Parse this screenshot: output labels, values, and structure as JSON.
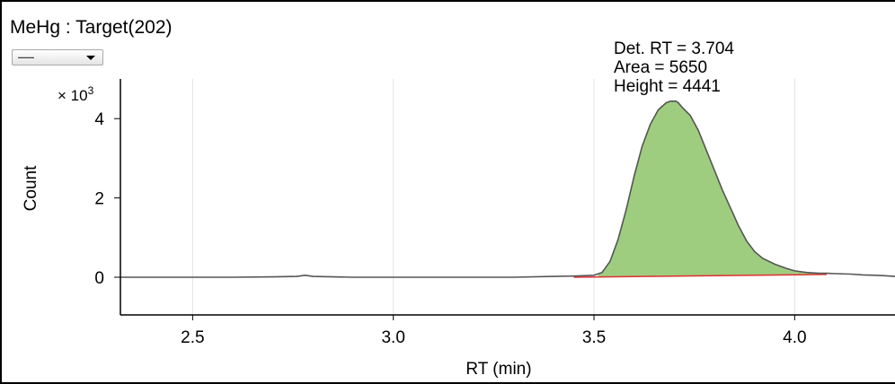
{
  "chart_data": {
    "type": "line",
    "title": "MeHg : Target(202)",
    "xlabel": "RT (min)",
    "ylabel": "Count",
    "y_multiplier_base": "× 10",
    "y_multiplier_exp": "3",
    "xlim": [
      2.32,
      4.25
    ],
    "ylim": [
      -0.95,
      5.0
    ],
    "x_ticks": [
      2.5,
      3.0,
      3.5,
      4.0
    ],
    "x_tick_labels": [
      "2.5",
      "3.0",
      "3.5",
      "4.0"
    ],
    "y_ticks": [
      0,
      2,
      4
    ],
    "y_tick_labels": [
      "0",
      "2",
      "4"
    ],
    "grid": {
      "vertical": true,
      "horizontal": false
    },
    "colors": {
      "trace": "#555555",
      "peak_fill": "#9fcd7f",
      "baseline": "#e03030",
      "grid": "#e3e3e3"
    },
    "series": [
      {
        "x": [
          2.32,
          2.4,
          2.5,
          2.6,
          2.7,
          2.76,
          2.78,
          2.8,
          2.9,
          3.0,
          3.1,
          3.2,
          3.3,
          3.4,
          3.45,
          3.48,
          3.5,
          3.52,
          3.54,
          3.56,
          3.58,
          3.6,
          3.62,
          3.64,
          3.66,
          3.68,
          3.69,
          3.704,
          3.71,
          3.72,
          3.74,
          3.76,
          3.78,
          3.8,
          3.82,
          3.84,
          3.86,
          3.88,
          3.9,
          3.92,
          3.95,
          3.98,
          4.0,
          4.03,
          4.06,
          4.08,
          4.1,
          4.14,
          4.17,
          4.2,
          4.22,
          4.25
        ],
        "y": [
          0.0,
          0.0,
          0.0,
          0.0,
          0.01,
          0.02,
          0.05,
          0.02,
          0.0,
          0.0,
          0.0,
          0.0,
          0.0,
          0.02,
          0.03,
          0.04,
          0.05,
          0.12,
          0.4,
          0.95,
          1.7,
          2.55,
          3.3,
          3.85,
          4.22,
          4.4,
          4.44,
          4.441,
          4.4,
          4.28,
          4.08,
          3.7,
          3.2,
          2.7,
          2.2,
          1.75,
          1.3,
          0.92,
          0.65,
          0.48,
          0.33,
          0.22,
          0.16,
          0.12,
          0.1,
          0.1,
          0.09,
          0.08,
          0.06,
          0.05,
          0.04,
          0.02
        ]
      }
    ],
    "peak": {
      "start": 3.51,
      "end": 4.08,
      "baseline": [
        0.0,
        0.07
      ]
    },
    "annotations": [
      "Det. RT = 3.704",
      "Area = 5650",
      "Height = 4441"
    ]
  },
  "controls": {
    "dropdown_value": "—"
  }
}
